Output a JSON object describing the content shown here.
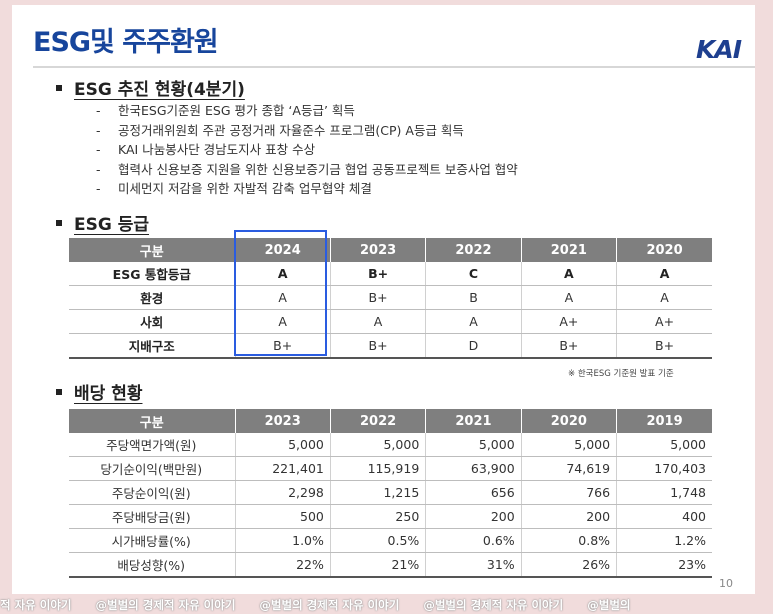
{
  "title": "ESG및 주주환원",
  "logo": "KAI",
  "sections": {
    "esg_progress": {
      "heading": "ESG 추진 현황(4분기)",
      "items": [
        "한국ESG기준원 ESG 평가 종합 ‘A등급’ 획득",
        "공정거래위원회 주관 공정거래 자율준수 프로그램(CP) A등급 획득",
        "KAI 나눔봉사단 경남도지사 표창 수상",
        "협력사 신용보증 지원을 위한 신용보증기금 협업 공동프로젝트 보증사업 협약",
        "미세먼지 저감을 위한 자발적 감축 업무협약 체결"
      ]
    },
    "esg_grade": {
      "heading": "ESG 등급",
      "columns": [
        "구분",
        "2024",
        "2023",
        "2022",
        "2021",
        "2020"
      ],
      "rows": [
        [
          "ESG 통합등급",
          "A",
          "B+",
          "C",
          "A",
          "A"
        ],
        [
          "환경",
          "A",
          "B+",
          "B",
          "A",
          "A"
        ],
        [
          "사회",
          "A",
          "A",
          "A",
          "A+",
          "A+"
        ],
        [
          "지배구조",
          "B+",
          "B+",
          "D",
          "B+",
          "B+"
        ]
      ],
      "note": "※ 한국ESG 기준원 발표 기준"
    },
    "dividend": {
      "heading": "배당 현황",
      "columns": [
        "구분",
        "2023",
        "2022",
        "2021",
        "2020",
        "2019"
      ],
      "rows": [
        [
          "주당액면가액(원)",
          "5,000",
          "5,000",
          "5,000",
          "5,000",
          "5,000"
        ],
        [
          "당기순이익(백만원)",
          "221,401",
          "115,919",
          "63,900",
          "74,619",
          "170,403"
        ],
        [
          "주당순이익(원)",
          "2,298",
          "1,215",
          "656",
          "766",
          "1,748"
        ],
        [
          "주당배당금(원)",
          "500",
          "250",
          "200",
          "200",
          "400"
        ],
        [
          "시가배당률(%)",
          "1.0%",
          "0.5%",
          "0.6%",
          "0.8%",
          "1.2%"
        ],
        [
          "배당성향(%)",
          "22%",
          "21%",
          "31%",
          "26%",
          "23%"
        ]
      ]
    }
  },
  "page_number": "10",
  "watermark": [
    "적 자유 이야기",
    "@벌벌의 경제적 자유 이야기",
    "@벌벌의 경제적 자유 이야기",
    "@벌벌의 경제적 자유 이야기",
    "@벌벌의"
  ],
  "colors": {
    "title": "#17459c",
    "header_bg": "#7f7f7f",
    "highlight_border": "#2a5ce0"
  }
}
